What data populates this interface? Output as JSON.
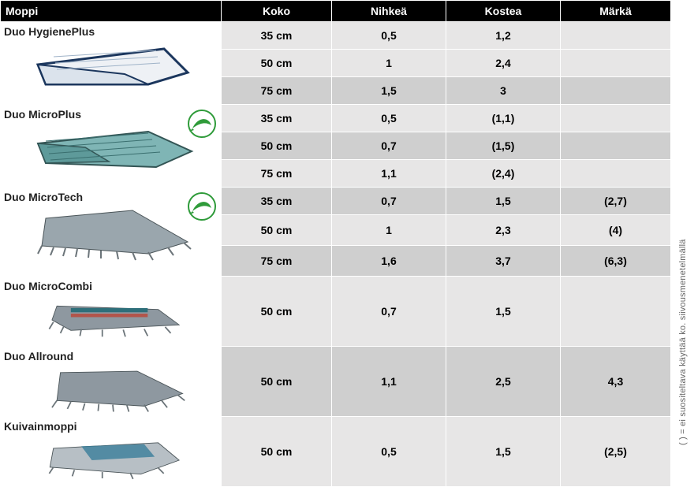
{
  "headers": [
    "Moppi",
    "Koko",
    "Nihkeä",
    "Kostea",
    "Märkä"
  ],
  "products": [
    {
      "name": "Duo HygienePlus",
      "ecolabel": false,
      "mop_svg": "hygieneplus",
      "rows": [
        {
          "koko": "35 cm",
          "nihkea": "0,5",
          "kostea": "1,2",
          "marka": "",
          "shade": "lt",
          "h": "h34"
        },
        {
          "koko": "50 cm",
          "nihkea": "1",
          "kostea": "2,4",
          "marka": "",
          "shade": "lt",
          "h": "h34"
        },
        {
          "koko": "75 cm",
          "nihkea": "1,5",
          "kostea": "3",
          "marka": "",
          "shade": "dk",
          "h": "h34"
        }
      ]
    },
    {
      "name": "Duo MicroPlus",
      "ecolabel": true,
      "mop_svg": "microplus",
      "rows": [
        {
          "koko": "35 cm",
          "nihkea": "0,5",
          "kostea": "(1,1)",
          "marka": "",
          "shade": "lt",
          "h": "h34"
        },
        {
          "koko": "50 cm",
          "nihkea": "0,7",
          "kostea": "(1,5)",
          "marka": "",
          "shade": "dk",
          "h": "h34"
        },
        {
          "koko": "75 cm",
          "nihkea": "1,1",
          "kostea": "(2,4)",
          "marka": "",
          "shade": "lt",
          "h": "h34"
        }
      ]
    },
    {
      "name": "Duo MicroTech",
      "ecolabel": true,
      "mop_svg": "microtech",
      "rows": [
        {
          "koko": "35 cm",
          "nihkea": "0,7",
          "kostea": "1,5",
          "marka": "(2,7)",
          "shade": "dk",
          "h": "h34"
        },
        {
          "koko": "50 cm",
          "nihkea": "1",
          "kostea": "2,3",
          "marka": "(4)",
          "shade": "lt",
          "h": "h38"
        },
        {
          "koko": "75 cm",
          "nihkea": "1,6",
          "kostea": "3,7",
          "marka": "(6,3)",
          "shade": "dk",
          "h": "h38"
        }
      ]
    },
    {
      "name": "Duo MicroCombi",
      "ecolabel": false,
      "mop_svg": "microcombi",
      "rows": [
        {
          "koko": "50 cm",
          "nihkea": "0,7",
          "kostea": "1,5",
          "marka": "",
          "shade": "lt",
          "h": "h78"
        }
      ]
    },
    {
      "name": "Duo Allround",
      "ecolabel": false,
      "mop_svg": "allround",
      "rows": [
        {
          "koko": "50 cm",
          "nihkea": "1,1",
          "kostea": "2,5",
          "marka": "4,3",
          "shade": "dk",
          "h": "h78"
        }
      ]
    },
    {
      "name": "Kuivainmoppi",
      "ecolabel": false,
      "mop_svg": "kuivain",
      "rows": [
        {
          "koko": "50 cm",
          "nihkea": "0,5",
          "kostea": "1,5",
          "marka": "(2,5)",
          "shade": "lt",
          "h": "h78"
        }
      ]
    }
  ],
  "sidenote": "( ) = ei suositeltava käyttää ko. siivousmenetelmällä",
  "colors": {
    "header_bg": "#000000",
    "header_fg": "#ffffff",
    "row_light": "#e7e6e6",
    "row_dark": "#cfcfcf",
    "border": "#ffffff"
  }
}
